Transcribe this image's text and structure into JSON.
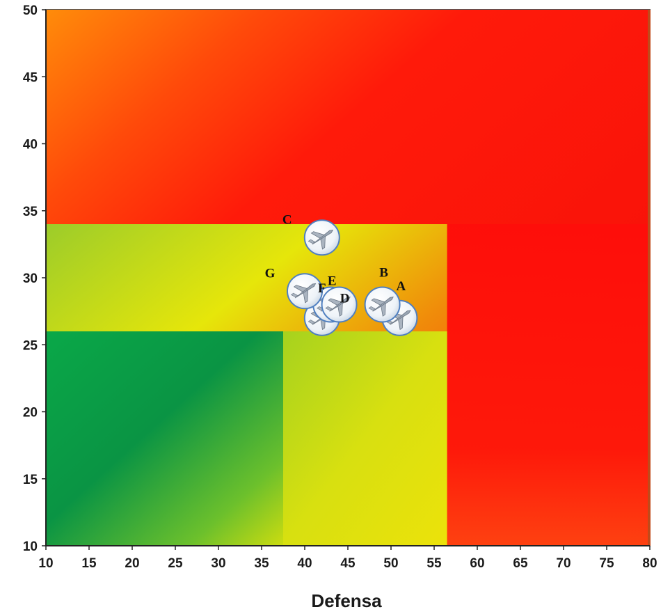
{
  "chart_data": {
    "type": "scatter",
    "title": "",
    "xlabel": "Defensa",
    "ylabel": "",
    "xlim": [
      10,
      80
    ],
    "ylim": [
      10,
      50
    ],
    "x_ticks": [
      10,
      15,
      20,
      25,
      30,
      35,
      40,
      45,
      50,
      55,
      60,
      65,
      70,
      75,
      80
    ],
    "y_ticks": [
      10,
      15,
      20,
      25,
      30,
      35,
      40,
      45,
      50
    ],
    "grid": false,
    "legend": "none",
    "background_zones": [
      {
        "name": "green",
        "x_max": 37.5,
        "y_max": 26,
        "color": "#0aa848"
      },
      {
        "name": "yellow",
        "x_max": 56.5,
        "y_max": 34,
        "color": "#e6e60a"
      },
      {
        "name": "red",
        "x_max": 80,
        "y_max": 50,
        "color": "#ff1a0a"
      }
    ],
    "marker_icon": "fighter-jet-icon",
    "points": [
      {
        "label": "A",
        "x": 51,
        "y": 27
      },
      {
        "label": "B",
        "x": 49,
        "y": 28
      },
      {
        "label": "C",
        "x": 42,
        "y": 33
      },
      {
        "label": "D",
        "x": 44,
        "y": 28
      },
      {
        "label": "E",
        "x": 43,
        "y": 28
      },
      {
        "label": "F",
        "x": 42,
        "y": 27
      },
      {
        "label": "G",
        "x": 40,
        "y": 29
      }
    ]
  }
}
